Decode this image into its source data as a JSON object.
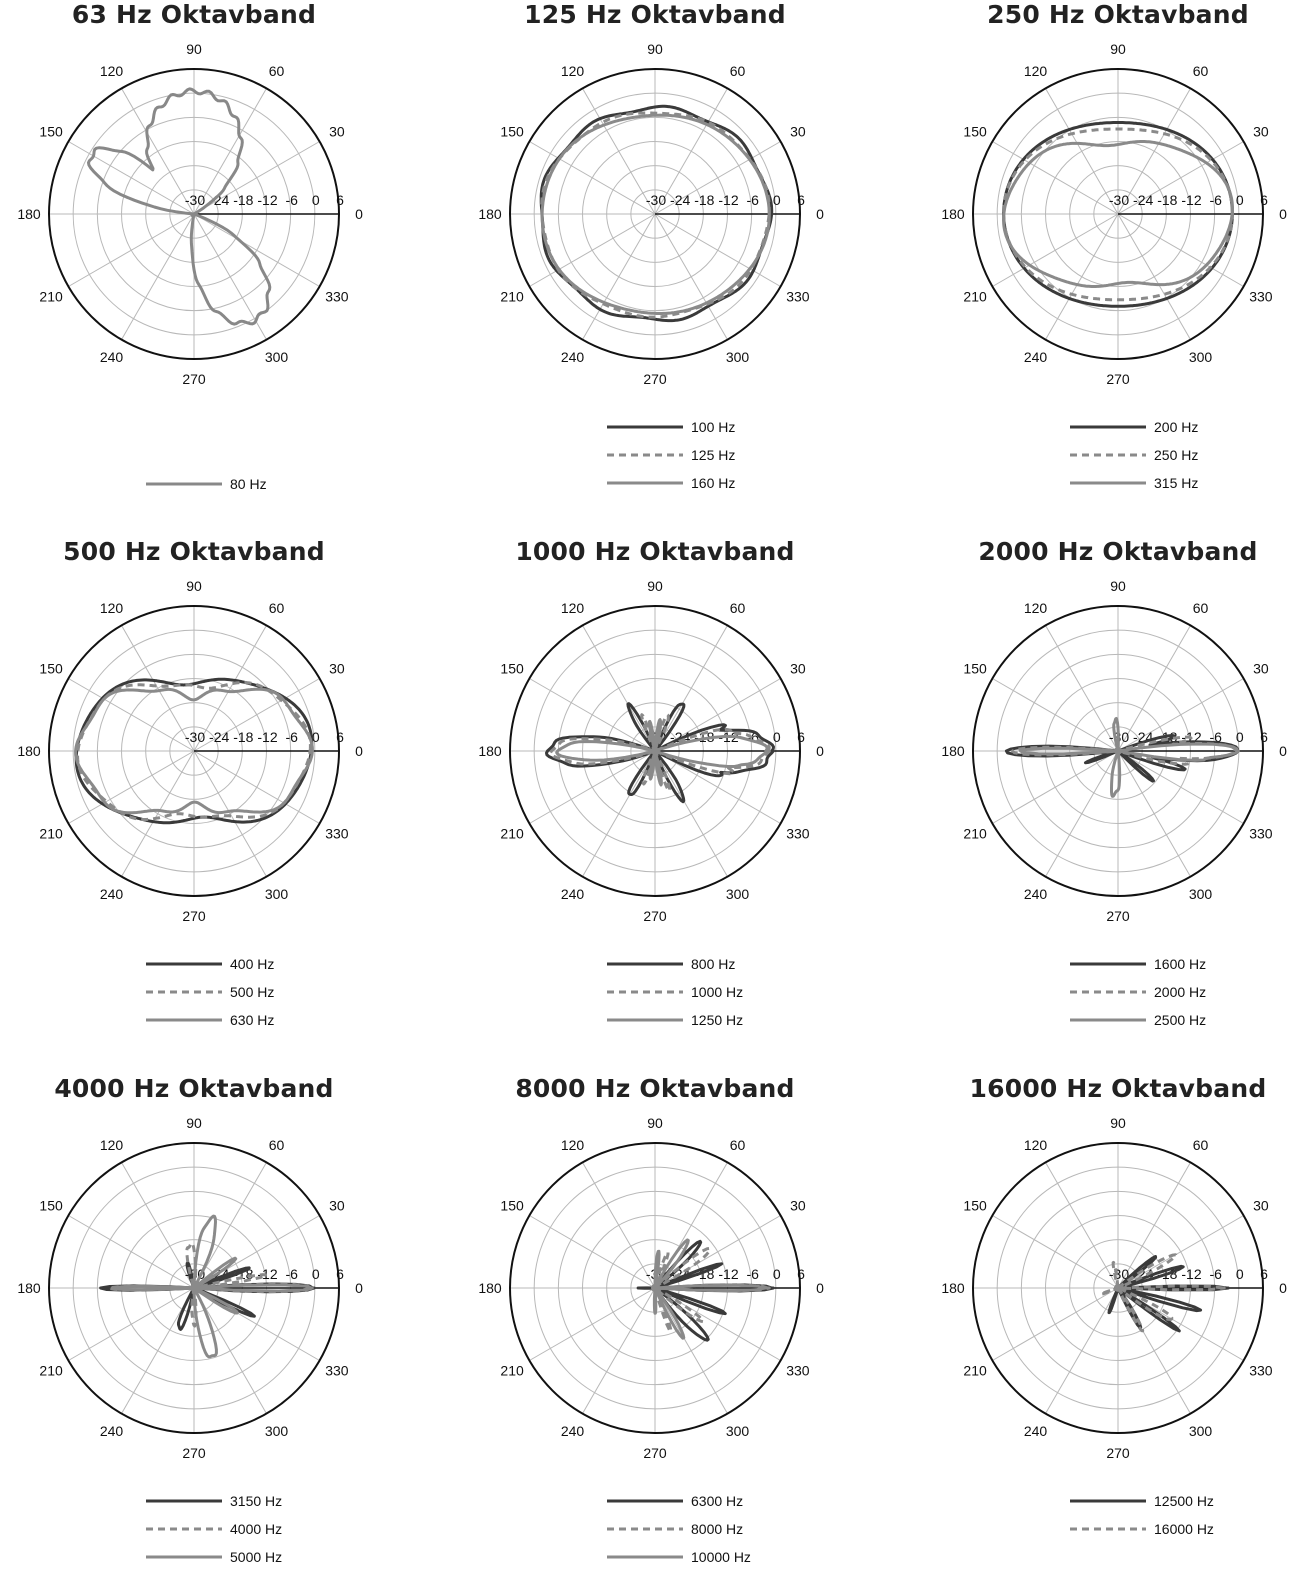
{
  "chart_data": [
    {
      "type": "polar",
      "title": "63 Hz Oktavband",
      "angle_labels": [
        "0",
        "30",
        "60",
        "90",
        "120",
        "150",
        "180",
        "210",
        "240",
        "270",
        "300",
        "330"
      ],
      "r_ticks": [
        "-30",
        "-24",
        "-18",
        "-12",
        "-6",
        "0",
        "6"
      ],
      "rlim": [
        -30,
        6
      ],
      "series": [
        {
          "name": "80 Hz",
          "style": "solid",
          "color": "#888888",
          "base": 0,
          "lobes": [
            {
              "a": 90,
              "w": 60,
              "h": 0.5
            },
            {
              "a": 150,
              "w": 25,
              "h": -0.6
            },
            {
              "a": 300,
              "w": 40,
              "h": 0.4
            }
          ],
          "ripple": 0.4,
          "freq": 11,
          "phase": 0.5
        }
      ]
    },
    {
      "type": "polar",
      "title": "125 Hz Oktavband",
      "angle_labels": [
        "0",
        "30",
        "60",
        "90",
        "120",
        "150",
        "180",
        "210",
        "240",
        "270",
        "300",
        "330"
      ],
      "r_ticks": [
        "-30",
        "-24",
        "-18",
        "-12",
        "-6",
        "0",
        "6"
      ],
      "rlim": [
        -30,
        6
      ],
      "series": [
        {
          "name": "100 Hz",
          "style": "solid",
          "color": "#3a3a3a",
          "base": -1.5,
          "ellipse": 0.12,
          "ripple": 0.5,
          "freq": 9,
          "phase": 1.1
        },
        {
          "name": "125 Hz",
          "style": "dashed",
          "color": "#8a8a8a",
          "base": -1.8,
          "ellipse": 0.16,
          "ripple": 0.3,
          "freq": 7,
          "phase": 0.4
        },
        {
          "name": "160 Hz",
          "style": "solid",
          "color": "#8a8a8a",
          "base": -1.8,
          "ellipse": 0.2,
          "ripple": 0.2,
          "freq": 5,
          "phase": 2.0
        }
      ]
    },
    {
      "type": "polar",
      "title": "250 Hz Oktavband",
      "angle_labels": [
        "0",
        "30",
        "60",
        "90",
        "120",
        "150",
        "180",
        "210",
        "240",
        "270",
        "300",
        "330"
      ],
      "r_ticks": [
        "-30",
        "-24",
        "-18",
        "-12",
        "-6",
        "0",
        "6"
      ],
      "rlim": [
        -30,
        6
      ],
      "series": [
        {
          "name": "200 Hz",
          "style": "solid",
          "color": "#3a3a3a",
          "base": -1.6,
          "ellipse": 0.31,
          "ripple": 0.1,
          "freq": 3,
          "phase": 0
        },
        {
          "name": "250 Hz",
          "style": "dashed",
          "color": "#8a8a8a",
          "base": -1.6,
          "ellipse": 0.4,
          "ripple": 0.1,
          "freq": 3,
          "phase": 0
        },
        {
          "name": "315 Hz",
          "style": "solid",
          "color": "#8a8a8a",
          "base": -1.8,
          "ellipse": 0.6,
          "ripple": 0.5,
          "freq": 6,
          "phase": 0.3
        }
      ]
    },
    {
      "type": "polar",
      "title": "500 Hz Oktavband",
      "angle_labels": [
        "0",
        "30",
        "60",
        "90",
        "120",
        "150",
        "180",
        "210",
        "240",
        "270",
        "300",
        "330"
      ],
      "r_ticks": [
        "-30",
        "-24",
        "-18",
        "-12",
        "-6",
        "0",
        "6"
      ],
      "rlim": [
        -30,
        6
      ],
      "series": [
        {
          "name": "400 Hz",
          "style": "solid",
          "color": "#3a3a3a",
          "base": -1.0,
          "pinch": 0.58,
          "ripple": 0.6,
          "freq": 6,
          "phase": 0.2
        },
        {
          "name": "500 Hz",
          "style": "dashed",
          "color": "#8a8a8a",
          "base": -1.6,
          "pinch": 0.6,
          "ripple": 0.6,
          "freq": 8,
          "phase": 0.8
        },
        {
          "name": "630 Hz",
          "style": "solid",
          "color": "#8a8a8a",
          "base": -1.4,
          "pinch": 0.72,
          "ripple": 0.8,
          "freq": 10,
          "phase": 1.4
        }
      ]
    },
    {
      "type": "polar",
      "title": "1000 Hz Oktavband",
      "angle_labels": [
        "0",
        "30",
        "60",
        "90",
        "120",
        "150",
        "180",
        "210",
        "240",
        "270",
        "300",
        "330"
      ],
      "r_ticks": [
        "-30",
        "-24",
        "-18",
        "-12",
        "-6",
        "0",
        "6"
      ],
      "rlim": [
        -30,
        6
      ],
      "series": [
        {
          "name": "800 Hz",
          "style": "solid",
          "color": "#3a3a3a",
          "lobes": [
            {
              "a": 0,
              "w": 28,
              "h": -1
            },
            {
              "a": 180,
              "w": 22,
              "h": -3.5
            },
            {
              "a": 60,
              "w": 14,
              "h": -16
            },
            {
              "a": 120,
              "w": 14,
              "h": -17
            },
            {
              "a": 300,
              "w": 14,
              "h": -16
            },
            {
              "a": 240,
              "w": 14,
              "h": -17
            },
            {
              "a": 20,
              "w": 10,
              "h": -12
            },
            {
              "a": 340,
              "w": 10,
              "h": -12
            }
          ],
          "floor": -30
        },
        {
          "name": "1000 Hz",
          "style": "dashed",
          "color": "#8a8a8a",
          "lobes": [
            {
              "a": 0,
              "w": 24,
              "h": -2
            },
            {
              "a": 180,
              "w": 20,
              "h": -4.5
            },
            {
              "a": 70,
              "w": 12,
              "h": -20
            },
            {
              "a": 110,
              "w": 12,
              "h": -21
            },
            {
              "a": 290,
              "w": 12,
              "h": -20
            },
            {
              "a": 250,
              "w": 12,
              "h": -21
            },
            {
              "a": 345,
              "w": 10,
              "h": -10
            },
            {
              "a": 15,
              "w": 10,
              "h": -10
            }
          ],
          "floor": -30
        },
        {
          "name": "1250 Hz",
          "style": "solid",
          "color": "#8a8a8a",
          "lobes": [
            {
              "a": 0,
              "w": 20,
              "h": -2.5
            },
            {
              "a": 180,
              "w": 16,
              "h": -6
            },
            {
              "a": 80,
              "w": 12,
              "h": -22
            },
            {
              "a": 100,
              "w": 12,
              "h": -23
            },
            {
              "a": 280,
              "w": 12,
              "h": -22
            },
            {
              "a": 260,
              "w": 12,
              "h": -23
            },
            {
              "a": 350,
              "w": 8,
              "h": -9
            }
          ],
          "floor": -30
        }
      ]
    },
    {
      "type": "polar",
      "title": "2000 Hz Oktavband",
      "angle_labels": [
        "0",
        "30",
        "60",
        "90",
        "120",
        "150",
        "180",
        "210",
        "240",
        "270",
        "300",
        "330"
      ],
      "r_ticks": [
        "-30",
        "-24",
        "-18",
        "-12",
        "-6",
        "0",
        "6"
      ],
      "rlim": [
        -30,
        6
      ],
      "series": [
        {
          "name": "1600 Hz",
          "style": "solid",
          "color": "#3a3a3a",
          "lobes": [
            {
              "a": 0,
              "w": 12,
              "h": -0.5
            },
            {
              "a": 180,
              "w": 7,
              "h": -2.5
            },
            {
              "a": 345,
              "w": 8,
              "h": -13
            },
            {
              "a": 15,
              "w": 8,
              "h": -15
            },
            {
              "a": 320,
              "w": 8,
              "h": -18
            },
            {
              "a": 200,
              "w": 8,
              "h": -22
            }
          ],
          "floor": -30
        },
        {
          "name": "2000 Hz",
          "style": "dashed",
          "color": "#8a8a8a",
          "lobes": [
            {
              "a": 0,
              "w": 10,
              "h": -1
            },
            {
              "a": 180,
              "w": 6,
              "h": -4
            },
            {
              "a": 350,
              "w": 8,
              "h": -12
            },
            {
              "a": 10,
              "w": 8,
              "h": -12
            }
          ],
          "floor": -30
        },
        {
          "name": "2500 Hz",
          "style": "solid",
          "color": "#8a8a8a",
          "lobes": [
            {
              "a": 0,
              "w": 9,
              "h": -0.5
            },
            {
              "a": 180,
              "w": 5,
              "h": -6
            },
            {
              "a": 95,
              "w": 18,
              "h": -22
            },
            {
              "a": 265,
              "w": 22,
              "h": -19
            },
            {
              "a": 355,
              "w": 6,
              "h": -8
            }
          ],
          "floor": -30
        }
      ]
    },
    {
      "type": "polar",
      "title": "4000 Hz Oktavband",
      "angle_labels": [
        "0",
        "30",
        "60",
        "90",
        "120",
        "150",
        "180",
        "210",
        "240",
        "270",
        "300",
        "330"
      ],
      "r_ticks": [
        "-30",
        "-24",
        "-18",
        "-12",
        "-6",
        "0",
        "6"
      ],
      "rlim": [
        -30,
        6
      ],
      "series": [
        {
          "name": "3150 Hz",
          "style": "solid",
          "color": "#3a3a3a",
          "lobes": [
            {
              "a": 0,
              "w": 5,
              "h": -0.5
            },
            {
              "a": 180,
              "w": 4,
              "h": -7
            },
            {
              "a": 250,
              "w": 16,
              "h": -19
            },
            {
              "a": 105,
              "w": 12,
              "h": -23
            },
            {
              "a": 335,
              "w": 6,
              "h": -14
            },
            {
              "a": 20,
              "w": 6,
              "h": -16
            }
          ],
          "floor": -30
        },
        {
          "name": "4000 Hz",
          "style": "dashed",
          "color": "#8a8a8a",
          "lobes": [
            {
              "a": 0,
              "w": 5,
              "h": -1
            },
            {
              "a": 180,
              "w": 4,
              "h": -9
            },
            {
              "a": 95,
              "w": 22,
              "h": -19
            },
            {
              "a": 270,
              "w": 16,
              "h": -21
            },
            {
              "a": 10,
              "w": 5,
              "h": -12
            }
          ],
          "floor": -30
        },
        {
          "name": "5000 Hz",
          "style": "solid",
          "color": "#8a8a8a",
          "lobes": [
            {
              "a": 0,
              "w": 4,
              "h": -1
            },
            {
              "a": 180,
              "w": 4,
              "h": -10
            },
            {
              "a": 75,
              "w": 18,
              "h": -12
            },
            {
              "a": 285,
              "w": 18,
              "h": -12
            },
            {
              "a": 35,
              "w": 8,
              "h": -17
            },
            {
              "a": 330,
              "w": 8,
              "h": -17
            }
          ],
          "floor": -30
        }
      ]
    },
    {
      "type": "polar",
      "title": "8000 Hz Oktavband",
      "angle_labels": [
        "0",
        "30",
        "60",
        "90",
        "120",
        "150",
        "180",
        "210",
        "240",
        "270",
        "300",
        "330"
      ],
      "r_ticks": [
        "-30",
        "-24",
        "-18",
        "-12",
        "-6",
        "0",
        "6"
      ],
      "rlim": [
        -30,
        6
      ],
      "series": [
        {
          "name": "6300 Hz",
          "style": "solid",
          "color": "#3a3a3a",
          "lobes": [
            {
              "a": 0,
              "w": 4,
              "h": -1
            },
            {
              "a": 45,
              "w": 10,
              "h": -14
            },
            {
              "a": 315,
              "w": 12,
              "h": -12
            },
            {
              "a": 20,
              "w": 5,
              "h": -13
            },
            {
              "a": 340,
              "w": 5,
              "h": -11
            },
            {
              "a": 180,
              "w": 4,
              "h": -26
            }
          ],
          "floor": -30
        },
        {
          "name": "8000 Hz",
          "style": "dashed",
          "color": "#8a8a8a",
          "lobes": [
            {
              "a": 0,
              "w": 4,
              "h": -2
            },
            {
              "a": 35,
              "w": 10,
              "h": -13
            },
            {
              "a": 325,
              "w": 10,
              "h": -16
            },
            {
              "a": 70,
              "w": 8,
              "h": -20
            },
            {
              "a": 290,
              "w": 8,
              "h": -19
            }
          ],
          "floor": -30
        },
        {
          "name": "10000 Hz",
          "style": "solid",
          "color": "#8a8a8a",
          "lobes": [
            {
              "a": 0,
              "w": 4,
              "h": -3
            },
            {
              "a": 55,
              "w": 12,
              "h": -16
            },
            {
              "a": 300,
              "w": 10,
              "h": -16
            },
            {
              "a": 85,
              "w": 10,
              "h": -21
            },
            {
              "a": 270,
              "w": 10,
              "h": -24
            }
          ],
          "floor": -30
        }
      ]
    },
    {
      "type": "polar",
      "title": "16000 Hz Oktavband",
      "angle_labels": [
        "0",
        "30",
        "60",
        "90",
        "120",
        "150",
        "180",
        "210",
        "240",
        "270",
        "300",
        "330"
      ],
      "r_ticks": [
        "-30",
        "-24",
        "-18",
        "-12",
        "-6",
        "0",
        "6"
      ],
      "rlim": [
        -30,
        6
      ],
      "series": [
        {
          "name": "12500 Hz",
          "style": "solid",
          "color": "#3a3a3a",
          "lobes": [
            {
              "a": 0,
              "w": 3,
              "h": -3
            },
            {
              "a": 18,
              "w": 6,
              "h": -13
            },
            {
              "a": 345,
              "w": 5,
              "h": -9
            },
            {
              "a": 325,
              "w": 5,
              "h": -12
            },
            {
              "a": 300,
              "w": 10,
              "h": -19
            },
            {
              "a": 250,
              "w": 8,
              "h": -23
            },
            {
              "a": 40,
              "w": 8,
              "h": -18
            }
          ],
          "floor": -30
        },
        {
          "name": "16000 Hz",
          "style": "dashed",
          "color": "#8a8a8a",
          "lobes": [
            {
              "a": 0,
              "w": 3,
              "h": -4
            },
            {
              "a": 30,
              "w": 10,
              "h": -14
            },
            {
              "a": 330,
              "w": 10,
              "h": -14
            },
            {
              "a": 300,
              "w": 8,
              "h": -18
            },
            {
              "a": 100,
              "w": 12,
              "h": -24
            },
            {
              "a": 200,
              "w": 10,
              "h": -26
            }
          ],
          "floor": -30
        }
      ]
    }
  ]
}
